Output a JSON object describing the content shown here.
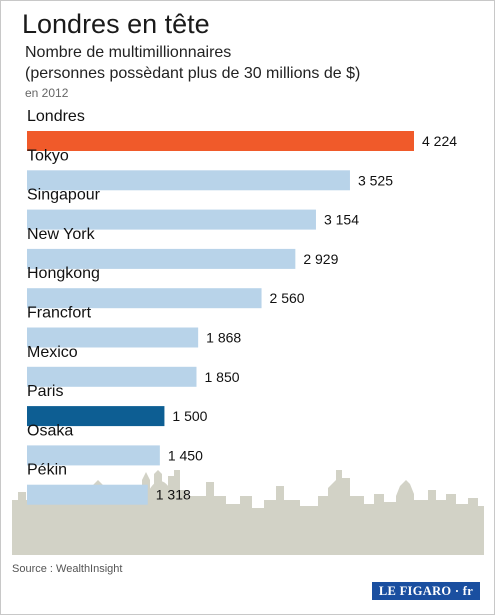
{
  "header": {
    "title": "Londres en tête",
    "subtitle_line1": "Nombre de multimillionnaires",
    "subtitle_line2": "(personnes possèdant plus de 30 millions de $)",
    "year_note": "en 2012"
  },
  "chart_data": {
    "type": "bar",
    "orientation": "horizontal",
    "categories": [
      "Londres",
      "Tokyo",
      "Singapour",
      "New York",
      "Hongkong",
      "Francfort",
      "Mexico",
      "Paris",
      "Osaka",
      "Pékin"
    ],
    "values": [
      4224,
      3525,
      3154,
      2929,
      2560,
      1868,
      1850,
      1500,
      1450,
      1318
    ],
    "value_labels": [
      "4 224",
      "3 525",
      "3 154",
      "2 929",
      "2 560",
      "1 868",
      "1 850",
      "1 500",
      "1 450",
      "1 318"
    ],
    "colors": {
      "default": "#b8d3e9",
      "highlight_top": "#f05a2a",
      "highlight_paris": "#0d5e93"
    },
    "bar_colors": [
      "#f05a2a",
      "#b8d3e9",
      "#b8d3e9",
      "#b8d3e9",
      "#b8d3e9",
      "#b8d3e9",
      "#b8d3e9",
      "#0d5e93",
      "#b8d3e9",
      "#b8d3e9"
    ],
    "legend": "none",
    "grid": false
  },
  "decoration": {
    "skyline_color": "#d2d2c6"
  },
  "footer": {
    "source": "Source : WealthInsight",
    "logo_text": "LE FIGARO · fr"
  }
}
